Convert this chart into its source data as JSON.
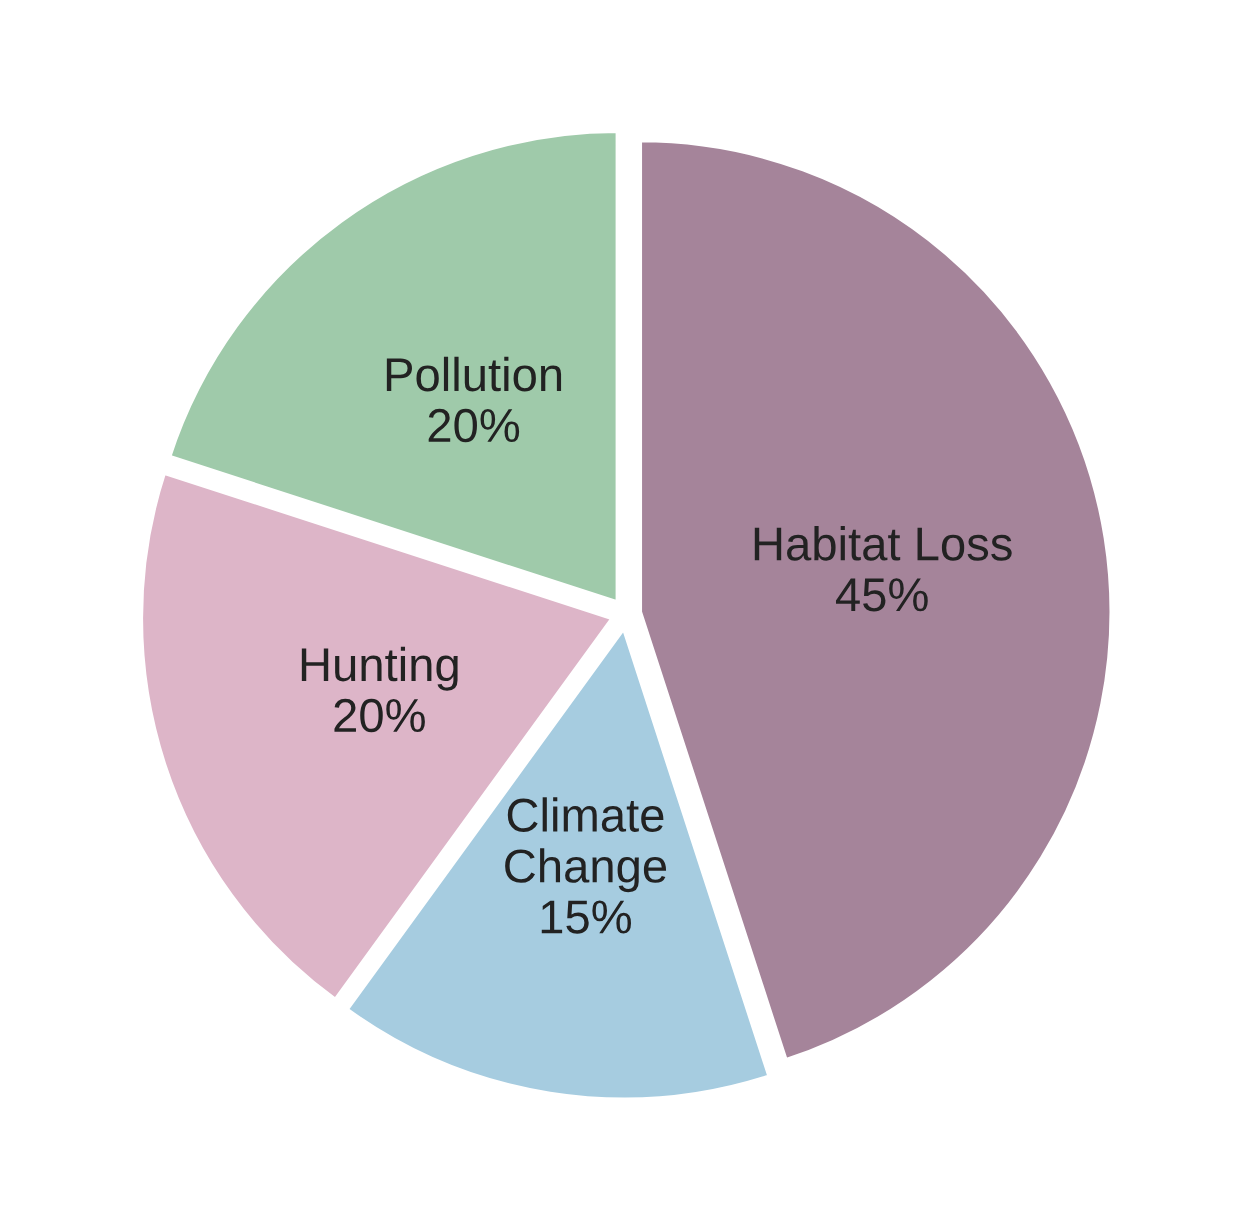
{
  "chart_data": {
    "type": "pie",
    "categories": [
      "Habitat Loss",
      "Climate Change",
      "Hunting",
      "Pollution"
    ],
    "values": [
      45,
      15,
      20,
      20
    ],
    "value_labels": [
      "45%",
      "15%",
      "20%",
      "20%"
    ],
    "colors": [
      "#a5849a",
      "#a6cce0",
      "#ddb5c8",
      "#9fcaaa"
    ]
  }
}
